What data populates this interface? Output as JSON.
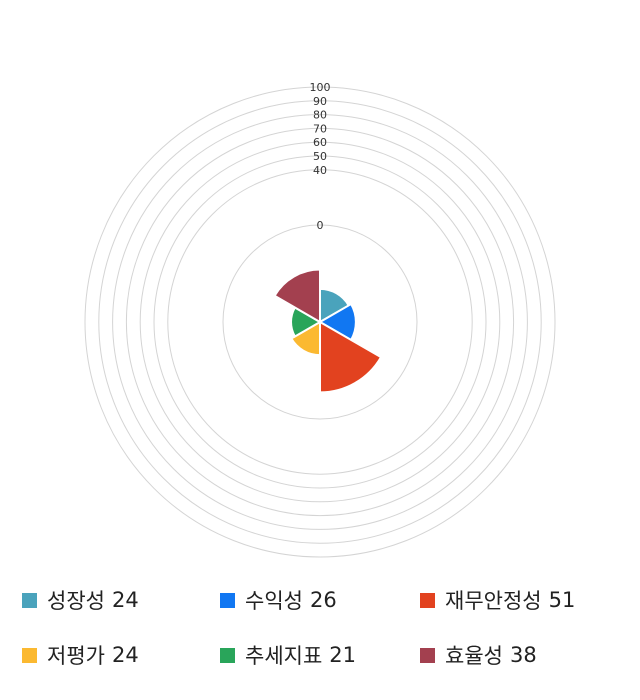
{
  "chart_data": {
    "type": "polar-area",
    "r_range": [
      0,
      100
    ],
    "r_ticks": [
      "0",
      "40",
      "50",
      "60",
      "70",
      "80",
      "90",
      "100"
    ],
    "r_tick_values": [
      0,
      40,
      50,
      60,
      70,
      80,
      90,
      100
    ],
    "grid": true,
    "legend_position": "bottom",
    "series": [
      {
        "name": "성장성",
        "value": 24,
        "value_label": "24",
        "color": "#4aa3bc"
      },
      {
        "name": "수익성",
        "value": 26,
        "value_label": "26",
        "color": "#1177f2"
      },
      {
        "name": "재무안정성",
        "value": 51,
        "value_label": "51",
        "color": "#e2421f"
      },
      {
        "name": "저평가",
        "value": 24,
        "value_label": "24",
        "color": "#fbb931"
      },
      {
        "name": "추세지표",
        "value": 21,
        "value_label": "21",
        "color": "#29a55a"
      },
      {
        "name": "효율성",
        "value": 38,
        "value_label": "38",
        "color": "#a3404f"
      }
    ]
  }
}
